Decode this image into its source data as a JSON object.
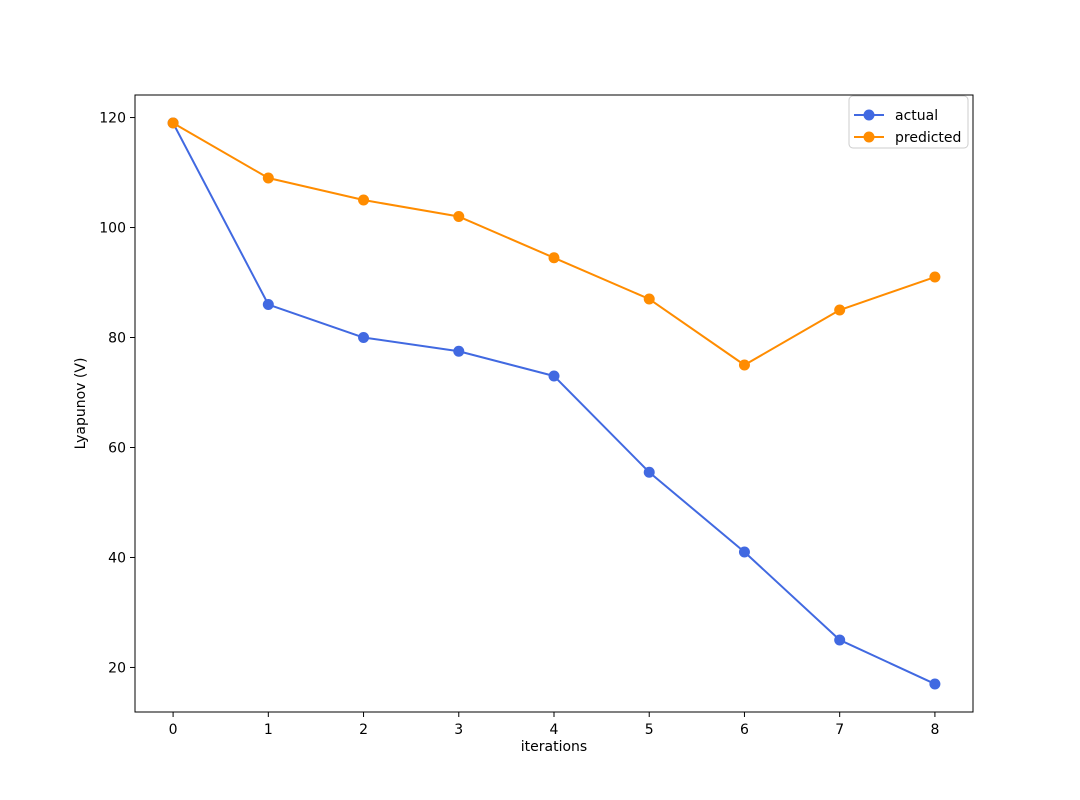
{
  "figure": {
    "background": "#ffffff",
    "spine_color": "#000000",
    "tick_color": "#000000"
  },
  "chart_data": {
    "type": "line",
    "x": [
      0,
      1,
      2,
      3,
      4,
      5,
      6,
      7,
      8
    ],
    "series": [
      {
        "name": "actual",
        "color": "#4169e1",
        "values": [
          119,
          86,
          80,
          77.5,
          73,
          55.5,
          41,
          25,
          17
        ]
      },
      {
        "name": "predicted",
        "color": "#ff8c00",
        "values": [
          119,
          109,
          105,
          102,
          94.5,
          87,
          75,
          85,
          91
        ]
      }
    ],
    "title": "",
    "xlabel": "iterations",
    "ylabel": "Lyapunov (V)",
    "xlim": [
      -0.4,
      8.4
    ],
    "ylim": [
      11.9,
      124.1
    ],
    "xticks": [
      "0",
      "1",
      "2",
      "3",
      "4",
      "5",
      "6",
      "7",
      "8"
    ],
    "xtick_values": [
      0,
      1,
      2,
      3,
      4,
      5,
      6,
      7,
      8
    ],
    "yticks": [
      "20",
      "40",
      "60",
      "80",
      "100",
      "120"
    ],
    "ytick_values": [
      20,
      40,
      60,
      80,
      100,
      120
    ],
    "grid": false,
    "marker": "circle",
    "legend": {
      "position": "upper right",
      "entries": [
        "actual",
        "predicted"
      ],
      "border_color": "#cccccc",
      "background": "#ffffff"
    }
  }
}
